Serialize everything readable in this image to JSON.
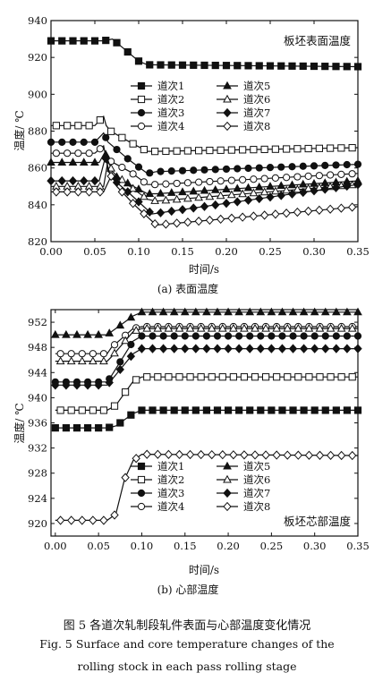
{
  "figure": {
    "caption_zh": "图 5   各道次轧制段轧件表面与心部温度变化情况",
    "caption_en_line1": "Fig. 5   Surface and core temperature changes of the",
    "caption_en_line2": "rolling stock in each pass rolling stage"
  },
  "chart_data": [
    {
      "type": "line",
      "subcaption": "(a) 表面温度",
      "inner_title": "板坯表面温度",
      "xlabel": "时间/s",
      "ylabel": "温度/ ℃",
      "xlim": [
        0,
        0.35
      ],
      "ylim": [
        820,
        940
      ],
      "xticks": [
        0.0,
        0.05,
        0.1,
        0.15,
        0.2,
        0.25,
        0.3,
        0.35
      ],
      "xtick_labels": [
        "0.00",
        "0.05",
        "0.10",
        "0.15",
        "0.20",
        "0.25",
        "0.30",
        "0.35"
      ],
      "yticks": [
        820,
        840,
        860,
        880,
        900,
        920,
        940
      ],
      "ytick_labels": [
        "820",
        "840",
        "860",
        "880",
        "900",
        "920",
        "940"
      ],
      "grid": false,
      "legend_position": "center",
      "legend_columns": 2,
      "series": [
        {
          "name": "道次1",
          "marker": "square-filled",
          "x": [
            0,
            0.06,
            0.07,
            0.085,
            0.1,
            0.11,
            0.35
          ],
          "y": [
            929,
            929,
            930,
            924,
            918,
            916,
            915
          ]
        },
        {
          "name": "道次2",
          "marker": "square-open",
          "x": [
            0,
            0.05,
            0.06,
            0.063,
            0.068,
            0.09,
            0.11,
            0.12,
            0.35
          ],
          "y": [
            883,
            883,
            888,
            883,
            880,
            874,
            869,
            869,
            871
          ]
        },
        {
          "name": "道次3",
          "marker": "circle-filled",
          "x": [
            0,
            0.05,
            0.06,
            0.065,
            0.09,
            0.11,
            0.12,
            0.35
          ],
          "y": [
            874,
            874,
            879,
            874,
            864,
            857,
            858,
            862
          ]
        },
        {
          "name": "道次4",
          "marker": "circle-open",
          "x": [
            0,
            0.05,
            0.06,
            0.063,
            0.09,
            0.11,
            0.12,
            0.35
          ],
          "y": [
            868,
            868,
            872,
            865,
            858,
            851,
            851,
            857
          ]
        },
        {
          "name": "道次5",
          "marker": "triangle-filled",
          "x": [
            0,
            0.055,
            0.062,
            0.065,
            0.09,
            0.11,
            0.12,
            0.35
          ],
          "y": [
            863,
            863,
            869,
            858,
            851,
            846,
            846,
            853
          ]
        },
        {
          "name": "道次6",
          "marker": "triangle-open",
          "x": [
            0,
            0.06,
            0.065,
            0.07,
            0.09,
            0.11,
            0.12,
            0.35
          ],
          "y": [
            850,
            850,
            864,
            858,
            850,
            843,
            842,
            851
          ]
        },
        {
          "name": "道次7",
          "marker": "diamond-filled",
          "x": [
            0,
            0.055,
            0.062,
            0.068,
            0.09,
            0.115,
            0.35
          ],
          "y": [
            853,
            853,
            866,
            855,
            846,
            835,
            851
          ]
        },
        {
          "name": "道次8",
          "marker": "diamond-open",
          "x": [
            0,
            0.06,
            0.07,
            0.075,
            0.095,
            0.12,
            0.35
          ],
          "y": [
            847,
            847,
            857,
            850,
            840,
            829,
            839
          ]
        }
      ]
    },
    {
      "type": "line",
      "subcaption": "(b) 心部温度",
      "inner_title": "板坯芯部温度",
      "xlabel": "时间/s",
      "ylabel": "温度/ ℃",
      "xlim": [
        -0.005,
        0.35
      ],
      "ylim": [
        918,
        954
      ],
      "xticks": [
        0.0,
        0.05,
        0.1,
        0.15,
        0.2,
        0.25,
        0.3,
        0.35
      ],
      "xtick_labels": [
        "0.00",
        "0.05",
        "0.10",
        "0.15",
        "0.20",
        "0.25",
        "0.30",
        "0.35"
      ],
      "yticks": [
        920,
        924,
        928,
        932,
        936,
        940,
        944,
        948,
        952
      ],
      "ytick_labels": [
        "920",
        "924",
        "928",
        "932",
        "936",
        "940",
        "944",
        "948",
        "952"
      ],
      "grid": false,
      "legend_position": "bottom-left",
      "legend_columns": 2,
      "series": [
        {
          "name": "道次1",
          "marker": "square-filled",
          "x": [
            0,
            0.06,
            0.07,
            0.09,
            0.1,
            0.35
          ],
          "y": [
            935.2,
            935.2,
            935.5,
            937.5,
            938,
            938
          ]
        },
        {
          "name": "道次2",
          "marker": "square-open",
          "x": [
            0,
            0.06,
            0.07,
            0.09,
            0.1,
            0.35
          ],
          "y": [
            938,
            938,
            938.8,
            942.6,
            943.3,
            943.3
          ]
        },
        {
          "name": "道次3",
          "marker": "circle-filled",
          "x": [
            0,
            0.06,
            0.065,
            0.09,
            0.1,
            0.35
          ],
          "y": [
            942.5,
            942.5,
            943.5,
            949,
            949.8,
            949.8
          ]
        },
        {
          "name": "道次4",
          "marker": "circle-open",
          "x": [
            0,
            0.06,
            0.065,
            0.09,
            0.1,
            0.35
          ],
          "y": [
            947,
            947,
            948,
            951,
            951.3,
            951.3
          ]
        },
        {
          "name": "道次5",
          "marker": "triangle-filled",
          "x": [
            0,
            0.06,
            0.065,
            0.09,
            0.1,
            0.35
          ],
          "y": [
            950,
            950,
            950.5,
            953,
            953.6,
            953.6
          ]
        },
        {
          "name": "道次6",
          "marker": "triangle-open",
          "x": [
            0,
            0.06,
            0.065,
            0.09,
            0.1,
            0.35
          ],
          "y": [
            945.8,
            945.8,
            946.5,
            950.5,
            951,
            951
          ]
        },
        {
          "name": "道次7",
          "marker": "diamond-filled",
          "x": [
            0,
            0.06,
            0.065,
            0.09,
            0.1,
            0.35
          ],
          "y": [
            942,
            942,
            942.8,
            947,
            947.8,
            947.8
          ]
        },
        {
          "name": "道次8",
          "marker": "diamond-open",
          "x": [
            0,
            0.06,
            0.07,
            0.08,
            0.09,
            0.1,
            0.35
          ],
          "y": [
            920.5,
            920.5,
            921.5,
            927,
            930,
            931,
            930.8
          ]
        }
      ]
    }
  ]
}
